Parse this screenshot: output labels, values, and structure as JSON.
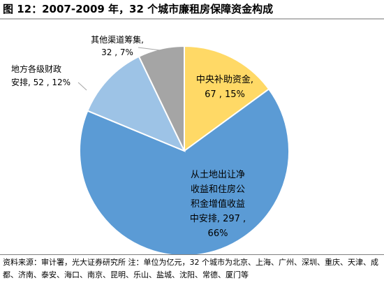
{
  "title": "图 12：2007-2009 年，32 个城市廉租房保障资金构成",
  "chart_data": {
    "type": "pie",
    "start_angle_deg": 0,
    "direction": "clockwise",
    "slices": [
      {
        "name": "中央补助资金",
        "value": 67,
        "percent": "15%",
        "color": "#FFD966",
        "label_lines": [
          "中央补助资金,",
          "67 , 15%"
        ]
      },
      {
        "name": "从土地出让净收益和住房公积金增值收益中安排",
        "value": 297,
        "percent": "66%",
        "color": "#5B9BD5",
        "label_lines": [
          "从土地出让净",
          "收益和住房公",
          "积金增值收益",
          "中安排, 297 ,",
          "66%"
        ]
      },
      {
        "name": "地方各级财政安排",
        "value": 52,
        "percent": "12%",
        "color": "#9DC3E6",
        "label_lines": [
          "地方各级财政",
          "安排, 52 , 12%"
        ]
      },
      {
        "name": "其他渠道筹集",
        "value": 32,
        "percent": "7%",
        "color": "#A5A5A5",
        "label_lines": [
          "其他渠道筹集,",
          "32 , 7%"
        ]
      }
    ]
  },
  "source_text": "资料来源：审计署，光大证券研究所 注：单位为亿元，32 个城市为北京、上海、广州、深圳、重庆、天津、成都、济南、泰安、海口、南京、昆明、乐山、盐城、沈阳、常德、厦门等"
}
